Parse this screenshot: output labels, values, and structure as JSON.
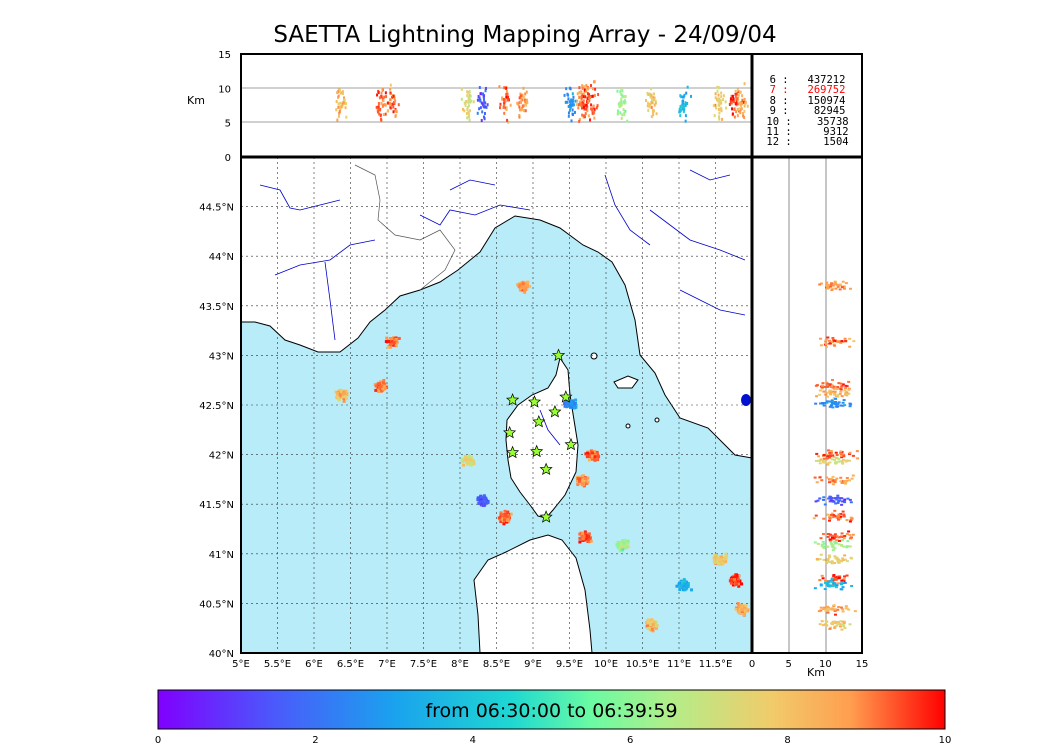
{
  "title": "SAETTA Lightning Mapping Array - 24/09/04",
  "colorbar": {
    "label": "from 06:30:00 to 06:39:59",
    "ticks": [
      "0",
      "2",
      "4",
      "6",
      "8",
      "10"
    ],
    "range": [
      0,
      10
    ],
    "colormap": "rainbow"
  },
  "counts": [
    {
      "text": "6 :   437212",
      "color": "#000000"
    },
    {
      "text": "7 :   269752",
      "color": "#ff0000"
    },
    {
      "text": "8 :   150974",
      "color": "#000000"
    },
    {
      "text": "9 :    82945",
      "color": "#000000"
    },
    {
      "text": "10 :    35738",
      "color": "#000000"
    },
    {
      "text": "11 :     9312",
      "color": "#000000"
    },
    {
      "text": "12 :     1504",
      "color": "#000000"
    }
  ],
  "colors": {
    "sea": "#b7ecf8",
    "land": "#ffffff",
    "rivers": "#0000cc",
    "station_fill": "#99ff33",
    "grid": "#333333"
  },
  "chart_data": [
    {
      "type": "scatter",
      "panel": "map",
      "x_unit": "longitude (deg E)",
      "y_unit": "latitude (deg N)",
      "xlim": [
        5,
        12
      ],
      "ylim": [
        40,
        45
      ],
      "x_ticks": [
        "5°E",
        "5.5°E",
        "6°E",
        "6.5°E",
        "7°E",
        "7.5°E",
        "8°E",
        "8.5°E",
        "9°E",
        "9.5°E",
        "10°E",
        "10.5°E",
        "11°E",
        "11.5°E"
      ],
      "y_ticks": [
        "40°N",
        "40.5°N",
        "41°N",
        "41.5°N",
        "42°N",
        "42.5°N",
        "43°N",
        "43.5°N",
        "44°N",
        "44.5°N"
      ],
      "grid": true,
      "stations": [
        [
          9.35,
          43.0
        ],
        [
          8.72,
          42.55
        ],
        [
          9.02,
          42.53
        ],
        [
          9.45,
          42.58
        ],
        [
          9.3,
          42.43
        ],
        [
          9.08,
          42.33
        ],
        [
          8.68,
          42.22
        ],
        [
          8.72,
          42.02
        ],
        [
          9.05,
          42.03
        ],
        [
          9.52,
          42.1
        ],
        [
          9.18,
          41.85
        ],
        [
          9.18,
          41.37
        ]
      ],
      "storm_cells": [
        {
          "lon": 8.85,
          "lat": 43.71,
          "time_min": 8.8
        },
        {
          "lon": 7.05,
          "lat": 43.15,
          "time_min": 9.0
        },
        {
          "lon": 6.9,
          "lat": 42.7,
          "time_min": 9.1
        },
        {
          "lon": 6.35,
          "lat": 42.62,
          "time_min": 8.2
        },
        {
          "lon": 8.1,
          "lat": 41.95,
          "time_min": 7.3
        },
        {
          "lon": 8.3,
          "lat": 41.55,
          "time_min": 1.5
        },
        {
          "lon": 8.6,
          "lat": 41.38,
          "time_min": 9.2
        },
        {
          "lon": 9.8,
          "lat": 42.0,
          "time_min": 9.3
        },
        {
          "lon": 9.65,
          "lat": 41.75,
          "time_min": 8.7
        },
        {
          "lon": 10.2,
          "lat": 41.1,
          "time_min": 6.3
        },
        {
          "lon": 9.7,
          "lat": 41.18,
          "time_min": 9.4
        },
        {
          "lon": 11.55,
          "lat": 40.95,
          "time_min": 7.8
        },
        {
          "lon": 11.75,
          "lat": 40.75,
          "time_min": 9.5
        },
        {
          "lon": 11.85,
          "lat": 40.45,
          "time_min": 8.6
        },
        {
          "lon": 11.05,
          "lat": 40.7,
          "time_min": 3.5
        },
        {
          "lon": 10.6,
          "lat": 40.3,
          "time_min": 8.0
        },
        {
          "lon": 9.5,
          "lat": 42.52,
          "time_min": 2.5
        }
      ]
    },
    {
      "type": "scatter",
      "panel": "lon-altitude",
      "xlim": [
        5,
        12
      ],
      "ylim": [
        0,
        15
      ],
      "ylabel": "Km",
      "y_ticks": [
        "0",
        "5",
        "10",
        "15"
      ]
    },
    {
      "type": "scatter",
      "panel": "altitude-lat",
      "xlim": [
        0,
        15
      ],
      "ylim": [
        40,
        45
      ],
      "xlabel": "Km",
      "x_ticks": [
        "0",
        "5",
        "10",
        "15"
      ]
    }
  ]
}
